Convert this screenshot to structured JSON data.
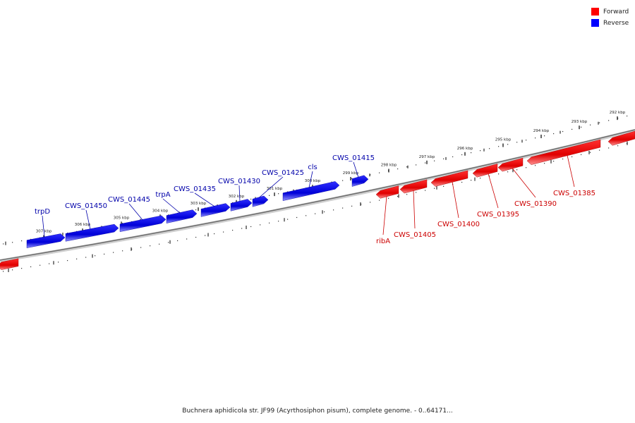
{
  "legend": {
    "forward": {
      "label": "Forward",
      "color": "#ff0000"
    },
    "reverse": {
      "label": "Reverse",
      "color": "#0000ff"
    }
  },
  "caption": "Buchnera aphidicola str. JF99 (Acyrthosiphon pisum), complete genome. - 0..64171...",
  "ticks": [
    "307 kbp",
    "306 kbp",
    "305 kbp",
    "304 kbp",
    "303 kbp",
    "302 kbp",
    "301 kbp",
    "300 kbp",
    "299 kbp",
    "298 kbp",
    "297 kbp",
    "296 kbp",
    "295 kbp",
    "294 kbp",
    "293 kbp",
    "292 kbp"
  ],
  "genes": [
    {
      "label": "trpD",
      "strand": "reverse"
    },
    {
      "label": "CWS_01450",
      "strand": "reverse"
    },
    {
      "label": "CWS_01445",
      "strand": "reverse"
    },
    {
      "label": "trpA",
      "strand": "reverse"
    },
    {
      "label": "CWS_01435",
      "strand": "reverse"
    },
    {
      "label": "CWS_01430",
      "strand": "reverse"
    },
    {
      "label": "CWS_01425",
      "strand": "reverse"
    },
    {
      "label": "cls",
      "strand": "reverse"
    },
    {
      "label": "CWS_01415",
      "strand": "reverse"
    },
    {
      "label": "ribA",
      "strand": "forward"
    },
    {
      "label": "CWS_01405",
      "strand": "forward"
    },
    {
      "label": "CWS_01400",
      "strand": "forward"
    },
    {
      "label": "CWS_01395",
      "strand": "forward"
    },
    {
      "label": "CWS_01390",
      "strand": "forward"
    },
    {
      "label": "CWS_01385",
      "strand": "forward"
    }
  ]
}
